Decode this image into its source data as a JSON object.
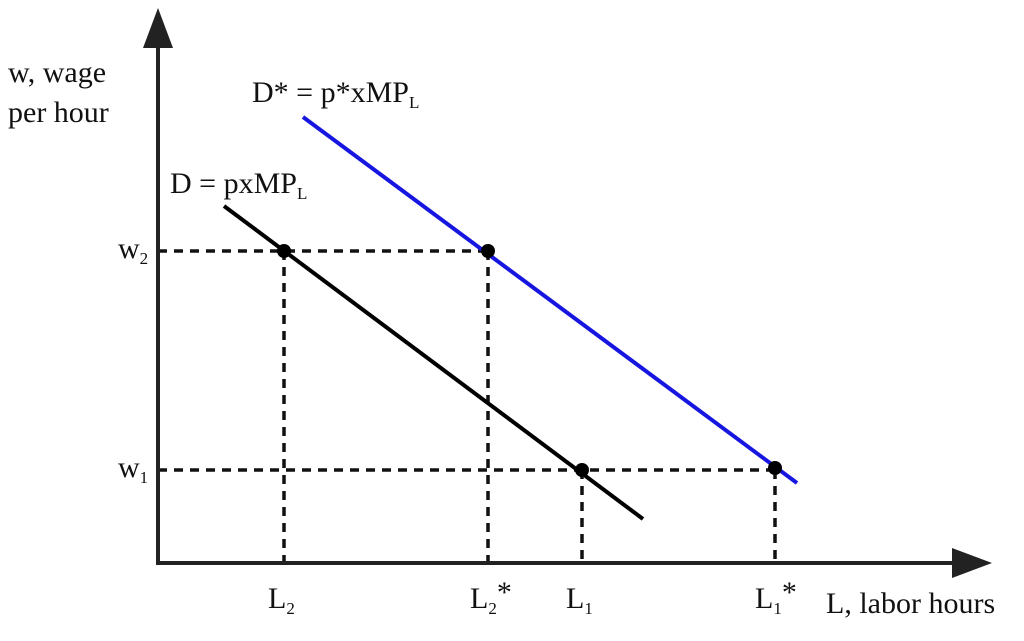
{
  "y_axis_label": [
    "w, wage",
    "per hour"
  ],
  "x_axis_label": "L, labor hours",
  "curves": [
    {
      "label": "D = pxMP",
      "subscript": "L"
    },
    {
      "label": "D* = p*xMP",
      "subscript": "L"
    }
  ],
  "y_ticks": [
    {
      "label": "w",
      "subscript": "2"
    },
    {
      "label": "w",
      "subscript": "1"
    }
  ],
  "x_ticks": [
    {
      "label": "L",
      "subscript": "2"
    },
    {
      "label": "L",
      "subscript": "2",
      "suffix": "*"
    },
    {
      "label": "L",
      "subscript": "1"
    },
    {
      "label": "L",
      "subscript": "1",
      "suffix": "*"
    }
  ]
}
